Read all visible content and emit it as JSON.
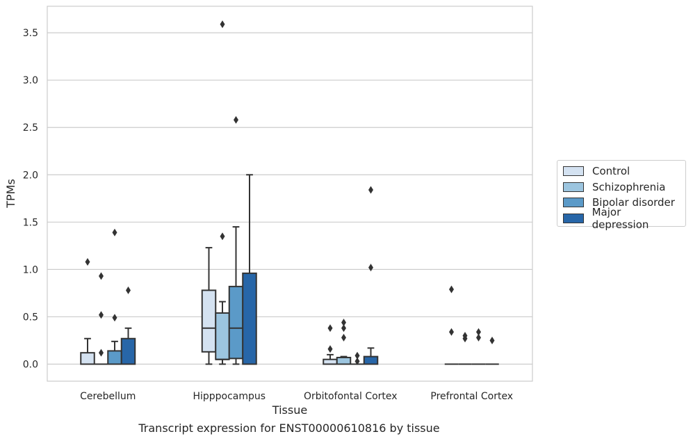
{
  "chart_data": {
    "type": "box",
    "ylabel": "TPMs",
    "xlabel": "Tissue",
    "caption": "Transcript expression for ENST00000610816 by tissue",
    "ylim": [
      -0.18,
      3.78
    ],
    "yticks": [
      "0.0",
      "0.5",
      "1.0",
      "1.5",
      "2.0",
      "2.5",
      "3.0",
      "3.5"
    ],
    "grid": "horizontal",
    "legend_position": "right",
    "categories": [
      "Cerebellum",
      "Hipppocampus",
      "Orbitofontal Cortex",
      "Prefrontal Cortex"
    ],
    "series": [
      {
        "name": "Control",
        "color": "#d4e2f1",
        "boxes": [
          {
            "q1": 0,
            "median": 0,
            "q3": 0.12,
            "whisker_low": 0,
            "whisker_high": 0.27,
            "outliers": [
              1.08
            ]
          },
          {
            "q1": 0.13,
            "median": 0.38,
            "q3": 0.78,
            "whisker_low": 0,
            "whisker_high": 1.23,
            "outliers": []
          },
          {
            "q1": 0,
            "median": 0,
            "q3": 0.05,
            "whisker_low": 0,
            "whisker_high": 0.1,
            "outliers": [
              0.16,
              0.38
            ]
          },
          {
            "q1": 0,
            "median": 0,
            "q3": 0,
            "whisker_low": 0,
            "whisker_high": 0,
            "outliers": [
              0.79,
              0.34
            ]
          }
        ]
      },
      {
        "name": "Schizophrenia",
        "color": "#9cc5df",
        "boxes": [
          {
            "q1": 0,
            "median": 0,
            "q3": 0,
            "whisker_low": 0,
            "whisker_high": 0,
            "outliers": [
              0.93,
              0.52,
              0.12
            ]
          },
          {
            "q1": 0.05,
            "median": 0.05,
            "q3": 0.54,
            "whisker_low": 0,
            "whisker_high": 0.66,
            "outliers": [
              3.59,
              1.35
            ]
          },
          {
            "q1": 0,
            "median": 0,
            "q3": 0.07,
            "whisker_low": 0,
            "whisker_high": 0.08,
            "outliers": [
              0.44,
              0.38,
              0.28
            ]
          },
          {
            "q1": 0,
            "median": 0,
            "q3": 0,
            "whisker_low": 0,
            "whisker_high": 0,
            "outliers": [
              0.3,
              0.27
            ]
          }
        ]
      },
      {
        "name": "Bipolar disorder",
        "color": "#5b9ac8",
        "boxes": [
          {
            "q1": 0,
            "median": 0,
            "q3": 0.14,
            "whisker_low": 0,
            "whisker_high": 0.24,
            "outliers": [
              1.39,
              0.49
            ]
          },
          {
            "q1": 0.06,
            "median": 0.38,
            "q3": 0.82,
            "whisker_low": 0,
            "whisker_high": 1.45,
            "outliers": [
              2.58
            ]
          },
          {
            "q1": 0,
            "median": 0,
            "q3": 0,
            "whisker_low": 0,
            "whisker_high": 0,
            "outliers": [
              0.09,
              0.03
            ]
          },
          {
            "q1": 0,
            "median": 0,
            "q3": 0,
            "whisker_low": 0,
            "whisker_high": 0,
            "outliers": [
              0.34,
              0.28
            ]
          }
        ]
      },
      {
        "name": "Major depression",
        "color": "#2766a8",
        "boxes": [
          {
            "q1": 0,
            "median": 0,
            "q3": 0.27,
            "whisker_low": 0,
            "whisker_high": 0.38,
            "outliers": [
              0.78
            ]
          },
          {
            "q1": 0,
            "median": 0,
            "q3": 0.96,
            "whisker_low": 0,
            "whisker_high": 2.0,
            "outliers": []
          },
          {
            "q1": 0,
            "median": 0,
            "q3": 0.08,
            "whisker_low": 0,
            "whisker_high": 0.17,
            "outliers": [
              1.84,
              1.02
            ]
          },
          {
            "q1": 0,
            "median": 0,
            "q3": 0,
            "whisker_low": 0,
            "whisker_high": 0,
            "outliers": [
              0.25
            ]
          }
        ]
      }
    ]
  },
  "legend": {
    "items": [
      {
        "label": "Control",
        "color": "#d4e2f1"
      },
      {
        "label": "Schizophrenia",
        "color": "#9cc5df"
      },
      {
        "label": "Bipolar disorder",
        "color": "#5b9ac8"
      },
      {
        "label": "Major depression",
        "color": "#2766a8"
      }
    ]
  }
}
